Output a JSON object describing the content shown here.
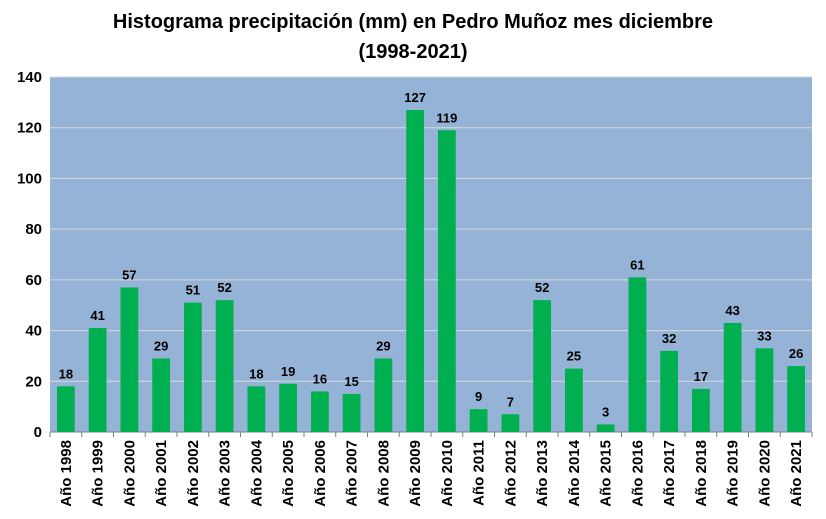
{
  "chart_data": {
    "type": "bar",
    "title": "Histograma precipitación (mm) en Pedro Muñoz mes diciembre",
    "subtitle": "(1998-2021)",
    "categories": [
      "Año 1998",
      "Año 1999",
      "Año 2000",
      "Año 2001",
      "Año 2002",
      "Año 2003",
      "Año 2004",
      "Año 2005",
      "Año 2006",
      "Año 2007",
      "Año 2008",
      "Año 2009",
      "Año 2010",
      "Año 2011",
      "Año 2012",
      "Año 2013",
      "Año 2014",
      "Año 2015",
      "Año 2016",
      "Año 2017",
      "Año 2018",
      "Año 2019",
      "Año 2020",
      "Año 2021"
    ],
    "values": [
      18,
      41,
      57,
      29,
      51,
      52,
      18,
      19,
      16,
      15,
      29,
      127,
      119,
      9,
      7,
      52,
      25,
      3,
      61,
      32,
      17,
      43,
      33,
      26
    ],
    "ylim": [
      0,
      140
    ],
    "yticks": [
      0,
      20,
      40,
      60,
      80,
      100,
      120,
      140
    ],
    "grid": true,
    "legend": "none",
    "colors": {
      "bar": "#00b050",
      "plot_background": "#95b3d7",
      "gridline": "#d9d9d9"
    }
  }
}
